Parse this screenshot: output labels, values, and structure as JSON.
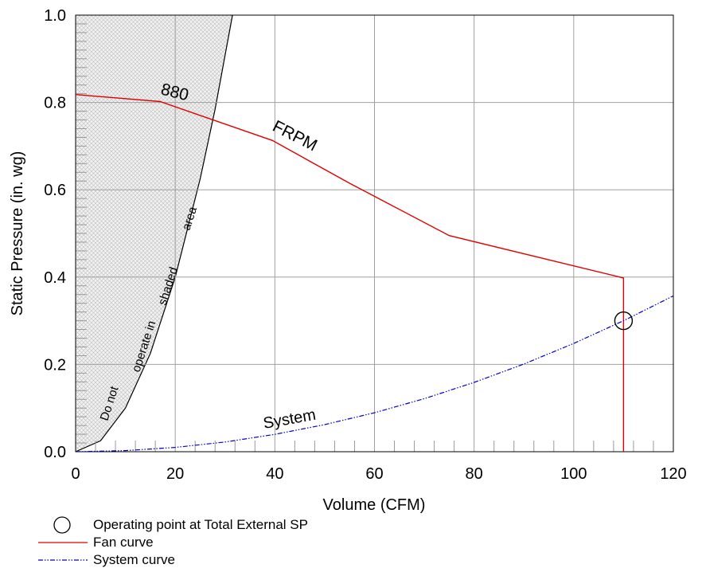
{
  "chart_data": {
    "type": "line",
    "xlabel": "Volume (CFM)",
    "ylabel": "Static Pressure (in. wg)",
    "xlim": [
      0,
      120
    ],
    "ylim": [
      0,
      1.0
    ],
    "xticks": [
      0,
      20,
      40,
      60,
      80,
      100,
      120
    ],
    "xtick_labels": [
      "0",
      "20",
      "40",
      "60",
      "80",
      "100",
      "120"
    ],
    "yticks": [
      0,
      0.2,
      0.4,
      0.6,
      0.8,
      1.0
    ],
    "ytick_labels": [
      "0.0",
      "0.2",
      "0.4",
      "0.6",
      "0.8",
      "1.0"
    ],
    "grid": true,
    "series": [
      {
        "name": "Fan curve",
        "color": "#e00000",
        "style": "solid",
        "x": [
          0,
          17,
          39.5,
          55,
          75,
          110,
          110
        ],
        "y": [
          0.818,
          0.802,
          0.713,
          0.615,
          0.495,
          0.398,
          0.0
        ]
      },
      {
        "name": "System curve",
        "color": "#0000cc",
        "style": "dash-dot",
        "x": [
          0,
          10,
          20,
          30,
          40,
          50,
          60,
          70,
          80,
          90,
          100,
          110,
          120
        ],
        "y": [
          0,
          0.0025,
          0.0099,
          0.0223,
          0.0397,
          0.062,
          0.0893,
          0.1215,
          0.1587,
          0.2009,
          0.248,
          0.3,
          0.357
        ]
      }
    ],
    "shaded_region": {
      "boundary_x": [
        0,
        5,
        10,
        15,
        20,
        25,
        28,
        31.5
      ],
      "boundary_y": [
        0,
        0.025,
        0.1,
        0.225,
        0.4,
        0.625,
        0.784,
        1.0
      ],
      "fill": "crosshatch-gray"
    },
    "operating_point": {
      "x": 110,
      "y": 0.3
    },
    "annotations": {
      "rpm_value": "880",
      "rpm_unit": "FRPM",
      "system_label": "System",
      "shaded_note_1": "Do not",
      "shaded_note_2": "operate in",
      "shaded_note_3": "shaded",
      "shaded_note_4": "area"
    },
    "legend": {
      "placement": "bottom-left",
      "items": [
        {
          "label": "Operating point at Total External SP",
          "symbol": "circle"
        },
        {
          "label": "Fan curve",
          "symbol": "solid-red"
        },
        {
          "label": "System curve",
          "symbol": "dashdot-blue"
        }
      ]
    }
  }
}
